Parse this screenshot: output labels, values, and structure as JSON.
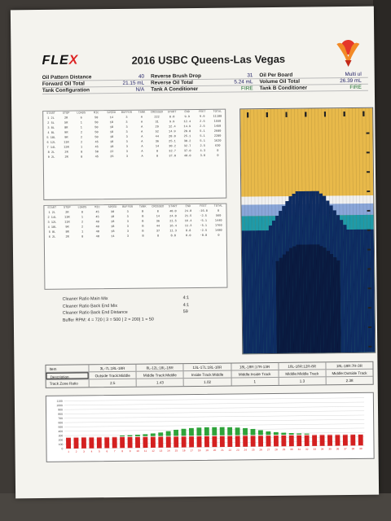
{
  "header": {
    "logo_main": "FLE",
    "logo_accent": "X",
    "title": "2016 USBC Queens-Las Vegas"
  },
  "specs": [
    {
      "l1": "Oil Pattern Distance",
      "v1": "40",
      "l2": "Reverse Brush Drop",
      "v2": "31",
      "l3": "Oil Per Board",
      "v3": "Multi ul"
    },
    {
      "l1": "Forward Oil Total",
      "v1": "21.15 mL",
      "l2": "Reverse Oil Total",
      "v2": "5.24 mL",
      "l3": "Volume Oil Total",
      "v3": "26.39 mL"
    },
    {
      "l1": "Tank Configuration",
      "v1": "N/A",
      "l2": "Tank A Conditioner",
      "v2": "FIRE",
      "l3": "Tank B Conditioner",
      "v3": "FIRE"
    }
  ],
  "forward_table": {
    "columns": [
      "START",
      "STOP",
      "LOADS",
      "MIC",
      "SPEED",
      "BUFFER",
      "TANK",
      "CROSSED",
      "START",
      "END",
      "FEET",
      "TOTAL"
    ],
    "rows": [
      [
        "1 2L",
        "2R",
        "6",
        "50",
        "14",
        "3",
        "A",
        "222",
        "0.0",
        "9.9",
        "9.9",
        "11100"
      ],
      [
        "2 5L",
        "5R",
        "1",
        "50",
        "18",
        "3",
        "A",
        "31",
        "9.9",
        "12.4",
        "2.5",
        "1550"
      ],
      [
        "3 8L",
        "8R",
        "1",
        "50",
        "18",
        "3",
        "A",
        "29",
        "12.4",
        "14.9",
        "2.5",
        "1450"
      ],
      [
        "4 8L",
        "9R",
        "2",
        "50",
        "18",
        "3",
        "A",
        "52",
        "14.9",
        "20.0",
        "5.1",
        "2600"
      ],
      [
        "5 10L",
        "9R",
        "2",
        "50",
        "18",
        "3",
        "A",
        "44",
        "20.0",
        "25.1",
        "5.1",
        "2200"
      ],
      [
        "6 12L",
        "11R",
        "2",
        "45",
        "18",
        "3",
        "A",
        "36",
        "25.1",
        "30.2",
        "5.1",
        "1620"
      ],
      [
        "7 14L",
        "13R",
        "1",
        "45",
        "18",
        "3",
        "A",
        "14",
        "30.2",
        "32.7",
        "2.5",
        "630"
      ],
      [
        "8 2L",
        "2R",
        "0",
        "50",
        "22",
        "3",
        "A",
        "0",
        "32.7",
        "37.0",
        "4.3",
        "0"
      ],
      [
        "9 2L",
        "2R",
        "0",
        "45",
        "26",
        "3",
        "A",
        "0",
        "37.0",
        "40.0",
        "3.0",
        "0"
      ]
    ]
  },
  "reverse_table": {
    "columns": [
      "START",
      "STOP",
      "LOADS",
      "MIC",
      "SPEED",
      "BUFFER",
      "TANK",
      "CROSSED",
      "START",
      "END",
      "FEET",
      "TOTAL"
    ],
    "rows": [
      [
        "1 2L",
        "2R",
        "0",
        "45",
        "30",
        "3",
        "B",
        "0",
        "40.0",
        "24.0",
        "-16.0",
        "0"
      ],
      [
        "2 14L",
        "13R",
        "1",
        "45",
        "18",
        "3",
        "B",
        "14",
        "24.0",
        "21.5",
        "-2.5",
        "560"
      ],
      [
        "3 12L",
        "11R",
        "2",
        "40",
        "18",
        "3",
        "B",
        "36",
        "21.5",
        "16.4",
        "-5.1",
        "1440"
      ],
      [
        "4 10L",
        "9R",
        "2",
        "40",
        "18",
        "3",
        "B",
        "44",
        "16.4",
        "11.3",
        "-5.1",
        "1760"
      ],
      [
        "5 8L",
        "8R",
        "1",
        "40",
        "18",
        "3",
        "B",
        "37",
        "11.3",
        "8.8",
        "-2.5",
        "1480"
      ],
      [
        "6 2L",
        "2R",
        "0",
        "40",
        "14",
        "3",
        "B",
        "0",
        "8.8",
        "0.0",
        "-8.8",
        "0"
      ]
    ]
  },
  "cleaner": [
    {
      "label": "Cleaner Ratio Main Mix",
      "value": "4:1"
    },
    {
      "label": "Cleaner Ratio Back End Mix",
      "value": "4:1"
    },
    {
      "label": "Cleaner Ratio Back End Distance",
      "value": "59"
    },
    {
      "label": "Buffer RPM: 4 = 720 | 3 = 500 | 2 = 200| 1 = 50",
      "value": ""
    }
  ],
  "summary": {
    "item_label": "Item",
    "ranges": [
      "3L-7L:18L-18R",
      "8L-12L:18L-18R",
      "13L-17L:18L-18R",
      "18L-18R:17R-13R",
      "18L-18R:12R-8R",
      "18L-18R:7R-3R"
    ],
    "description_label": "Description",
    "descriptions": [
      "Outside Track:Middle",
      "Middle Track:Middle",
      "Inside Track:Middle",
      "Middle:Inside Track",
      "Middle:Middle Track",
      "Middle:Outside Track"
    ],
    "ratio_label": "Track Zone Ratio",
    "ratios": [
      "2.5",
      "1.43",
      "1.02",
      "1",
      "1.3",
      "2.38"
    ]
  },
  "chart_data": {
    "type": "bar",
    "title": "",
    "ylim": [
      0,
      1100
    ],
    "yticks": [
      "1100",
      "1000",
      "900",
      "800",
      "700",
      "600",
      "500",
      "400",
      "300",
      "200",
      "100",
      "0"
    ],
    "categories": [
      "1",
      "2",
      "3",
      "4",
      "5",
      "6",
      "7",
      "8",
      "9",
      "10",
      "11",
      "12",
      "13",
      "14",
      "15",
      "16",
      "17",
      "18",
      "19",
      "20",
      "21",
      "22",
      "23",
      "24",
      "25",
      "26",
      "27",
      "28",
      "29",
      "30",
      "31",
      "32",
      "33",
      "34",
      "35",
      "36",
      "37",
      "38",
      "39"
    ],
    "series": [
      {
        "values": [
          250,
          250,
          250,
          250,
          250,
          250,
          250,
          250,
          250,
          250,
          250,
          250,
          250,
          250,
          250,
          250,
          250,
          250,
          250,
          250,
          250,
          250,
          250,
          250,
          250,
          250,
          250,
          250,
          250,
          250,
          250,
          250,
          250,
          250,
          250,
          250,
          250,
          250,
          250
        ]
      },
      {
        "values": [
          0,
          0,
          0,
          0,
          0,
          0,
          0,
          20,
          25,
          35,
          45,
          60,
          80,
          110,
          140,
          160,
          175,
          185,
          190,
          190,
          190,
          185,
          175,
          160,
          140,
          110,
          80,
          60,
          45,
          35,
          25,
          20,
          0,
          0,
          0,
          0,
          0,
          0,
          0
        ]
      }
    ],
    "colors": {
      "forward": "#d42020",
      "reverse": "#2ea33a",
      "mid": "#f2d0d0"
    }
  },
  "graphic": {
    "colors": {
      "board_top": "#e8b94a",
      "board_mid": "#f0f0f0",
      "oil_light": "#8aa6d8",
      "oil_medium": "#1f9aa8",
      "oil_dark": "#0e2c62",
      "oil_deep": "#0a1a40",
      "markers": "#222222"
    }
  }
}
